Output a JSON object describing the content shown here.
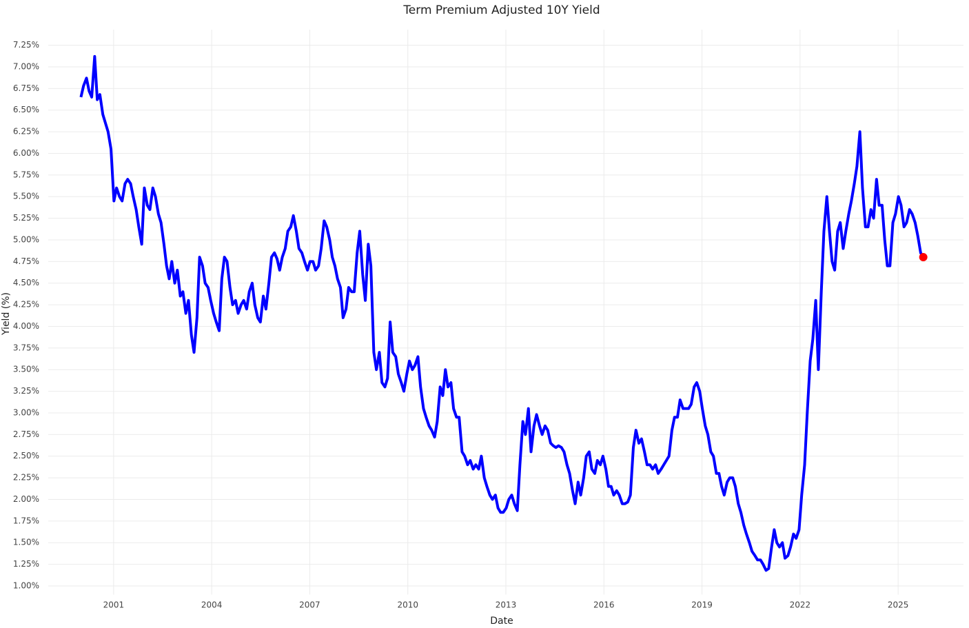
{
  "chart_data": {
    "type": "line",
    "title": "Term Premium Adjusted 10Y Yield",
    "x_label": "Date",
    "y_label": "Yield (%)",
    "color": "#0000ff",
    "last_point_color": "#ff0000",
    "grid": true,
    "xlim": [
      1999,
      2027
    ],
    "xticks": [
      2001,
      2004,
      2007,
      2010,
      2013,
      2016,
      2019,
      2022,
      2025
    ],
    "ylim": [
      0.9,
      7.43
    ],
    "yticks": [
      {
        "value": 1,
        "label": "1.00%"
      },
      {
        "value": 1.25,
        "label": "1.25%"
      },
      {
        "value": 1.5,
        "label": "1.50%"
      },
      {
        "value": 1.75,
        "label": "1.75%"
      },
      {
        "value": 2,
        "label": "2.00%"
      },
      {
        "value": 2.25,
        "label": "2.25%"
      },
      {
        "value": 2.5,
        "label": "2.50%"
      },
      {
        "value": 2.75,
        "label": "2.75%"
      },
      {
        "value": 3,
        "label": "3.00%"
      },
      {
        "value": 3.25,
        "label": "3.25%"
      },
      {
        "value": 3.5,
        "label": "3.50%"
      },
      {
        "value": 3.75,
        "label": "3.75%"
      },
      {
        "value": 4,
        "label": "4.00%"
      },
      {
        "value": 4.25,
        "label": "4.25%"
      },
      {
        "value": 4.5,
        "label": "4.50%"
      },
      {
        "value": 4.75,
        "label": "4.75%"
      },
      {
        "value": 5,
        "label": "5.00%"
      },
      {
        "value": 5.25,
        "label": "5.25%"
      },
      {
        "value": 5.5,
        "label": "5.50%"
      },
      {
        "value": 5.75,
        "label": "5.75%"
      },
      {
        "value": 6,
        "label": "6.00%"
      },
      {
        "value": 6.25,
        "label": "6.25%"
      },
      {
        "value": 6.5,
        "label": "6.50%"
      },
      {
        "value": 6.75,
        "label": "6.75%"
      },
      {
        "value": 7,
        "label": "7.00%"
      },
      {
        "value": 7.25,
        "label": "7.25%"
      }
    ],
    "x": [
      2000,
      2000.08,
      2000.17,
      2000.25,
      2000.33,
      2000.42,
      2000.5,
      2000.58,
      2000.67,
      2000.75,
      2000.83,
      2000.92,
      2001.01,
      2001.09,
      2001.18,
      2001.26,
      2001.35,
      2001.43,
      2001.52,
      2001.6,
      2001.69,
      2001.77,
      2001.86,
      2001.94,
      2002.03,
      2002.11,
      2002.2,
      2002.28,
      2002.37,
      2002.45,
      2002.54,
      2002.62,
      2002.7,
      2002.78,
      2002.87,
      2002.95,
      2003.04,
      2003.12,
      2003.21,
      2003.29,
      2003.38,
      2003.46,
      2003.55,
      2003.63,
      2003.72,
      2003.8,
      2003.89,
      2003.97,
      2004.06,
      2004.14,
      2004.23,
      2004.31,
      2004.39,
      2004.47,
      2004.56,
      2004.64,
      2004.73,
      2004.81,
      2004.9,
      2004.98,
      2005.07,
      2005.15,
      2005.24,
      2005.32,
      2005.41,
      2005.49,
      2005.58,
      2005.66,
      2005.75,
      2005.83,
      2005.92,
      2006,
      2006.08,
      2006.16,
      2006.25,
      2006.33,
      2006.42,
      2006.5,
      2006.59,
      2006.67,
      2006.76,
      2006.84,
      2006.93,
      2007.01,
      2007.1,
      2007.18,
      2007.27,
      2007.35,
      2007.44,
      2007.52,
      2007.61,
      2007.69,
      2007.77,
      2007.85,
      2007.94,
      2008.02,
      2008.11,
      2008.19,
      2008.28,
      2008.36,
      2008.45,
      2008.53,
      2008.62,
      2008.7,
      2008.79,
      2008.87,
      2008.96,
      2009.04,
      2009.13,
      2009.21,
      2009.3,
      2009.38,
      2009.46,
      2009.54,
      2009.63,
      2009.71,
      2009.8,
      2009.88,
      2009.97,
      2010.05,
      2010.14,
      2010.22,
      2010.31,
      2010.39,
      2010.48,
      2010.56,
      2010.65,
      2010.73,
      2010.82,
      2010.9,
      2010.99,
      2011.07,
      2011.15,
      2011.23,
      2011.32,
      2011.4,
      2011.49,
      2011.57,
      2011.66,
      2011.74,
      2011.83,
      2011.91,
      2012,
      2012.08,
      2012.17,
      2012.25,
      2012.34,
      2012.42,
      2012.51,
      2012.59,
      2012.68,
      2012.76,
      2012.84,
      2012.92,
      2013.01,
      2013.09,
      2013.18,
      2013.26,
      2013.35,
      2013.43,
      2013.52,
      2013.6,
      2013.69,
      2013.77,
      2013.86,
      2013.94,
      2014.03,
      2014.11,
      2014.2,
      2014.28,
      2014.37,
      2014.45,
      2014.53,
      2014.61,
      2014.7,
      2014.78,
      2014.87,
      2014.95,
      2015.04,
      2015.12,
      2015.21,
      2015.29,
      2015.38,
      2015.46,
      2015.55,
      2015.63,
      2015.72,
      2015.8,
      2015.89,
      2015.97,
      2016.06,
      2016.14,
      2016.22,
      2016.3,
      2016.39,
      2016.47,
      2016.56,
      2016.64,
      2016.73,
      2016.81,
      2016.9,
      2016.98,
      2017.07,
      2017.15,
      2017.24,
      2017.32,
      2017.41,
      2017.49,
      2017.58,
      2017.66,
      2017.75,
      2017.83,
      2017.91,
      2017.99,
      2018.08,
      2018.16,
      2018.25,
      2018.33,
      2018.42,
      2018.5,
      2018.59,
      2018.67,
      2018.76,
      2018.84,
      2018.93,
      2019.01,
      2019.1,
      2019.18,
      2019.27,
      2019.35,
      2019.44,
      2019.52,
      2019.6,
      2019.68,
      2019.77,
      2019.85,
      2019.94,
      2020.02,
      2020.11,
      2020.19,
      2020.28,
      2020.36,
      2020.45,
      2020.53,
      2020.62,
      2020.7,
      2020.79,
      2020.87,
      2020.96,
      2021.04,
      2021.13,
      2021.21,
      2021.29,
      2021.37,
      2021.46,
      2021.54,
      2021.63,
      2021.71,
      2021.8,
      2021.88,
      2021.97,
      2022.05,
      2022.14,
      2022.22,
      2022.31,
      2022.39,
      2022.48,
      2022.56,
      2022.65,
      2022.73,
      2022.82,
      2022.9,
      2022.98,
      2023.06,
      2023.15,
      2023.23,
      2023.32,
      2023.4,
      2023.49,
      2023.57,
      2023.66,
      2023.74,
      2023.83,
      2023.91,
      2024,
      2024.08,
      2024.17,
      2024.25,
      2024.34,
      2024.42,
      2024.51,
      2024.59,
      2024.67,
      2024.75,
      2024.84,
      2024.92,
      2025.01,
      2025.09,
      2025.18,
      2025.26,
      2025.35,
      2025.43,
      2025.52,
      2025.6,
      2025.69,
      2025.77
    ],
    "values": [
      6.65,
      6.78,
      6.87,
      6.72,
      6.65,
      7.12,
      6.62,
      6.68,
      6.45,
      6.35,
      6.25,
      6.05,
      5.45,
      5.6,
      5.5,
      5.45,
      5.65,
      5.7,
      5.65,
      5.5,
      5.35,
      5.15,
      4.95,
      5.6,
      5.4,
      5.35,
      5.6,
      5.5,
      5.3,
      5.2,
      4.95,
      4.7,
      4.55,
      4.75,
      4.5,
      4.65,
      4.35,
      4.4,
      4.15,
      4.3,
      3.9,
      3.7,
      4.1,
      4.8,
      4.7,
      4.5,
      4.45,
      4.3,
      4.15,
      4.05,
      3.95,
      4.55,
      4.8,
      4.75,
      4.45,
      4.25,
      4.3,
      4.15,
      4.25,
      4.3,
      4.2,
      4.4,
      4.5,
      4.25,
      4.1,
      4.05,
      4.35,
      4.2,
      4.5,
      4.8,
      4.85,
      4.78,
      4.65,
      4.8,
      4.9,
      5.1,
      5.15,
      5.28,
      5.1,
      4.9,
      4.85,
      4.75,
      4.65,
      4.75,
      4.75,
      4.65,
      4.7,
      4.9,
      5.22,
      5.15,
      5,
      4.8,
      4.7,
      4.55,
      4.45,
      4.1,
      4.2,
      4.45,
      4.4,
      4.4,
      4.85,
      5.1,
      4.6,
      4.3,
      4.95,
      4.7,
      3.7,
      3.5,
      3.7,
      3.35,
      3.3,
      3.4,
      4.05,
      3.7,
      3.65,
      3.45,
      3.35,
      3.25,
      3.45,
      3.6,
      3.5,
      3.55,
      3.65,
      3.3,
      3.05,
      2.95,
      2.85,
      2.8,
      2.72,
      2.9,
      3.3,
      3.2,
      3.5,
      3.3,
      3.35,
      3.05,
      2.95,
      2.95,
      2.55,
      2.5,
      2.4,
      2.45,
      2.35,
      2.4,
      2.35,
      2.5,
      2.25,
      2.15,
      2.05,
      2,
      2.05,
      1.9,
      1.85,
      1.85,
      1.9,
      2,
      2.05,
      1.95,
      1.87,
      2.4,
      2.9,
      2.75,
      3.05,
      2.55,
      2.85,
      2.98,
      2.85,
      2.75,
      2.85,
      2.8,
      2.65,
      2.62,
      2.6,
      2.62,
      2.6,
      2.55,
      2.4,
      2.3,
      2.1,
      1.95,
      2.2,
      2.05,
      2.25,
      2.5,
      2.55,
      2.35,
      2.3,
      2.45,
      2.4,
      2.5,
      2.35,
      2.15,
      2.15,
      2.05,
      2.1,
      2.05,
      1.95,
      1.95,
      1.97,
      2.05,
      2.6,
      2.8,
      2.65,
      2.7,
      2.55,
      2.4,
      2.4,
      2.35,
      2.4,
      2.3,
      2.35,
      2.4,
      2.45,
      2.5,
      2.8,
      2.95,
      2.95,
      3.15,
      3.05,
      3.05,
      3.05,
      3.1,
      3.3,
      3.35,
      3.25,
      3.05,
      2.85,
      2.75,
      2.55,
      2.5,
      2.3,
      2.3,
      2.15,
      2.05,
      2.2,
      2.25,
      2.25,
      2.15,
      1.95,
      1.85,
      1.7,
      1.6,
      1.5,
      1.4,
      1.35,
      1.3,
      1.3,
      1.25,
      1.18,
      1.2,
      1.45,
      1.65,
      1.5,
      1.45,
      1.5,
      1.32,
      1.35,
      1.45,
      1.6,
      1.55,
      1.65,
      2.05,
      2.4,
      3,
      3.6,
      3.85,
      4.3,
      3.5,
      4.4,
      5.1,
      5.5,
      5.1,
      4.75,
      4.65,
      5.1,
      5.2,
      4.9,
      5.1,
      5.3,
      5.45,
      5.65,
      5.85,
      6.25,
      5.6,
      5.15,
      5.15,
      5.35,
      5.25,
      5.7,
      5.4,
      5.4,
      5,
      4.7,
      4.7,
      5.2,
      5.3,
      5.5,
      5.4,
      5.15,
      5.2,
      5.35,
      5.3,
      5.2,
      5.05,
      4.85,
      4.8
    ]
  }
}
